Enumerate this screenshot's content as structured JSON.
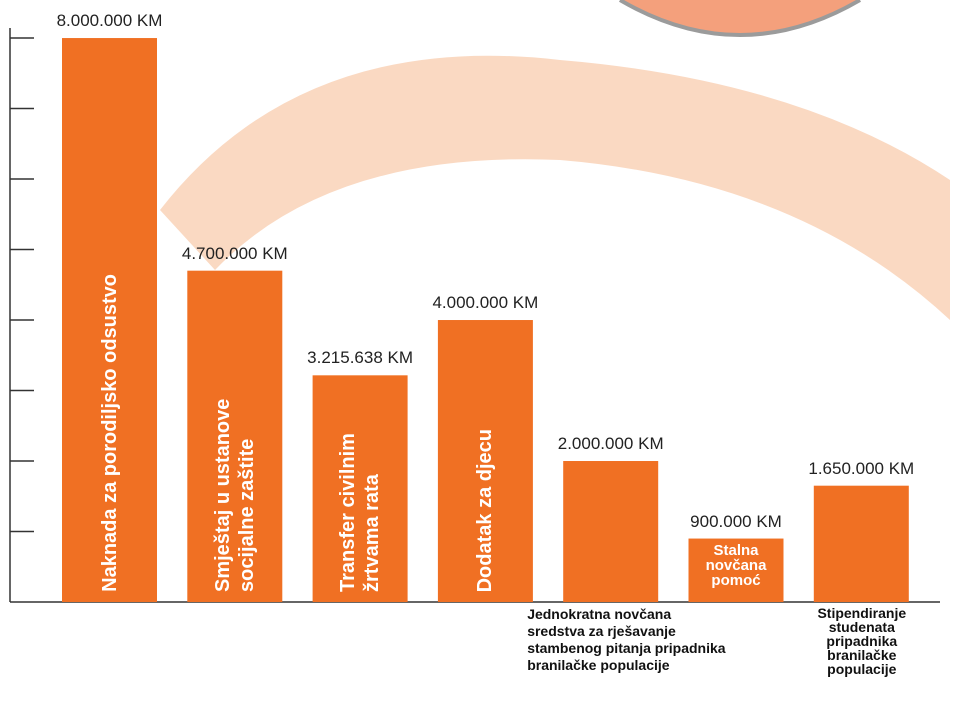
{
  "chart_data": {
    "type": "bar",
    "categories": [
      "Naknada za porodiljsko odsustvo",
      "Smještaj u ustanove socijalne zaštite",
      "Transfer civilnim žrtvama rata",
      "Dodatak za djecu",
      "Jednokratna novčana sredstva za rješavanje stambenog pitanja pripadnika branilačke populacije",
      "Stalna novčana pomoć",
      "Stipendiranje studenata pripadnika branilačke populacije"
    ],
    "values": [
      8000000,
      4700000,
      3215638,
      4000000,
      2000000,
      900000,
      1650000
    ],
    "value_labels": [
      "8.000.000 KM",
      "4.700.000 KM",
      "3.215.638 KM",
      "4.000.000 KM",
      "2.000.000 KM",
      "900.000 KM",
      "1.650.000 KM"
    ],
    "color": "#f07023",
    "ylim": [
      0,
      8100000
    ],
    "yticks": [
      1000000,
      2000000,
      3000000,
      4000000,
      5000000,
      6000000,
      7000000,
      8000000
    ]
  }
}
